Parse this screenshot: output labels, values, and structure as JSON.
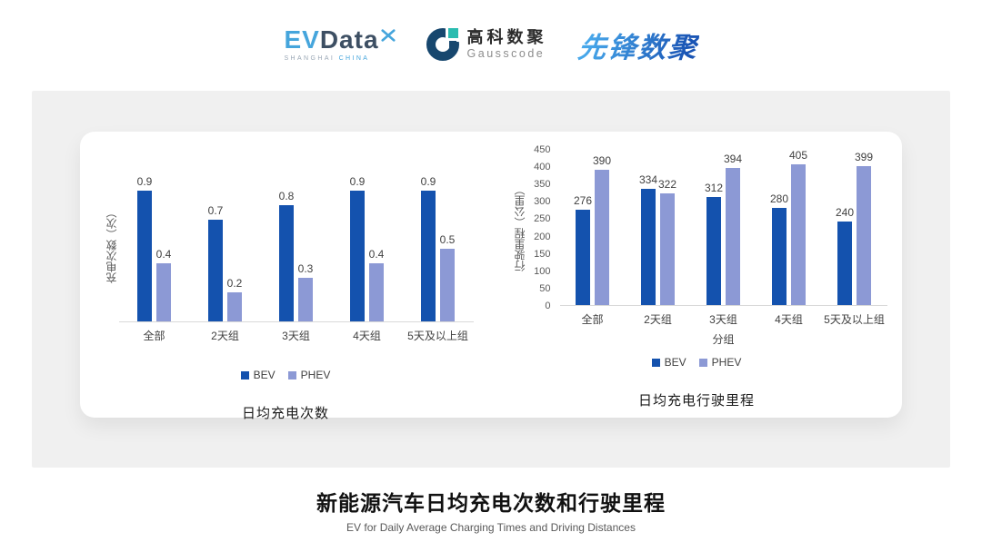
{
  "header": {
    "evdata": {
      "ev": "EV",
      "data": "Data",
      "sub_location": "SHANGHAI",
      "sub_country": "CHINA"
    },
    "gausscode": {
      "name_cn": "高科数聚",
      "name_en": "Gausscode"
    },
    "xianfeng": {
      "name": "先锋数聚"
    }
  },
  "colors": {
    "bev": "#1452AE",
    "phev": "#8C99D5",
    "baseline": "#D9D9D9"
  },
  "chart_data": [
    {
      "type": "bar",
      "title": "日均充电次数",
      "categories": [
        "全部",
        "2天组",
        "3天组",
        "4天组",
        "5天及以上组"
      ],
      "series": [
        {
          "name": "BEV",
          "values": [
            0.9,
            0.7,
            0.8,
            0.9,
            0.9
          ]
        },
        {
          "name": "PHEV",
          "values": [
            0.4,
            0.2,
            0.3,
            0.4,
            0.5
          ]
        }
      ],
      "ylabel": "充电次数（次）",
      "xlabel": "",
      "ylim": [
        0,
        1.0
      ],
      "grid": false,
      "data_labels": true,
      "legend_position": "bottom"
    },
    {
      "type": "bar",
      "title": "日均充电行驶里程",
      "categories": [
        "全部",
        "2天组",
        "3天组",
        "4天组",
        "5天及以上组"
      ],
      "series": [
        {
          "name": "BEV",
          "values": [
            276,
            334,
            312,
            280,
            240
          ]
        },
        {
          "name": "PHEV",
          "values": [
            390,
            322,
            394,
            405,
            399
          ]
        }
      ],
      "ylabel": "行驶里程（公里）",
      "xlabel": "分组",
      "ylim": [
        0,
        450
      ],
      "yticks": [
        450,
        400,
        350,
        300,
        250,
        200,
        150,
        100,
        50,
        0
      ],
      "grid": false,
      "data_labels": true,
      "legend_position": "bottom"
    }
  ],
  "footer": {
    "title": "新能源汽车日均充电次数和行驶里程",
    "subtitle": "EV for Daily Average Charging Times and Driving Distances"
  }
}
